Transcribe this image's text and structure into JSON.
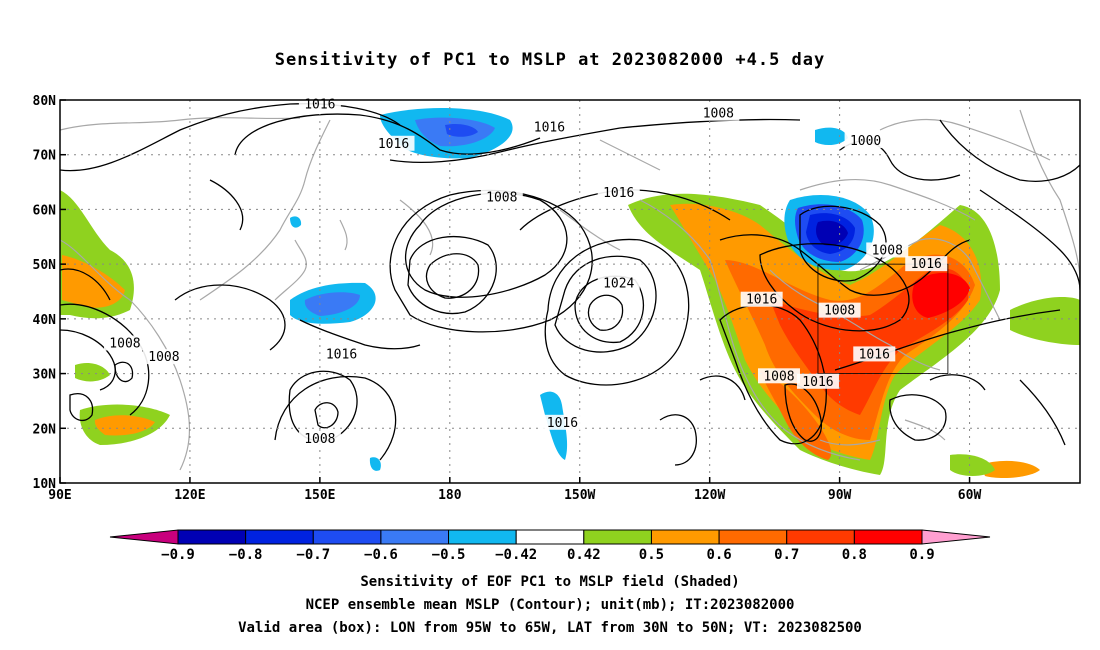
{
  "title": "Sensitivity of PC1 to MSLP at 2023082000 +4.5 day",
  "lat_labels": [
    "80N",
    "70N",
    "60N",
    "50N",
    "40N",
    "30N",
    "20N",
    "10N"
  ],
  "lat_values": [
    80,
    70,
    60,
    50,
    40,
    30,
    20,
    10
  ],
  "lon_labels": [
    "90E",
    "120E",
    "150E",
    "180",
    "150W",
    "120W",
    "90W",
    "60W"
  ],
  "lon_values": [
    90,
    120,
    150,
    180,
    210,
    240,
    270,
    300
  ],
  "contour_labels": [
    {
      "text": "1016",
      "lon": 150,
      "lat": 79.2
    },
    {
      "text": "1008",
      "lon": 242,
      "lat": 77.5
    },
    {
      "text": "1016",
      "lon": 203,
      "lat": 75.0
    },
    {
      "text": "1016",
      "lon": 167,
      "lat": 72.0
    },
    {
      "text": "1000",
      "lon": 276,
      "lat": 72.5
    },
    {
      "text": "1008",
      "lon": 192,
      "lat": 62.2
    },
    {
      "text": "1016",
      "lon": 219,
      "lat": 63.0
    },
    {
      "text": "1008",
      "lon": 281,
      "lat": 52.5
    },
    {
      "text": "1016",
      "lon": 290,
      "lat": 50.0
    },
    {
      "text": "1024",
      "lon": 219,
      "lat": 46.5
    },
    {
      "text": "1016",
      "lon": 252,
      "lat": 43.5
    },
    {
      "text": "1008",
      "lon": 270,
      "lat": 41.5
    },
    {
      "text": "1008",
      "lon": 105,
      "lat": 35.5
    },
    {
      "text": "1008",
      "lon": 114,
      "lat": 33.0
    },
    {
      "text": "1016",
      "lon": 155,
      "lat": 33.5
    },
    {
      "text": "1016",
      "lon": 278,
      "lat": 33.5
    },
    {
      "text": "1008",
      "lon": 256,
      "lat": 29.5
    },
    {
      "text": "1016",
      "lon": 265,
      "lat": 28.5
    },
    {
      "text": "1016",
      "lon": 206,
      "lat": 21.0
    },
    {
      "text": "1008",
      "lon": 150,
      "lat": 18.0
    }
  ],
  "validation_box": {
    "lon_west": 265,
    "lon_east": 295,
    "lat_south": 30,
    "lat_north": 50
  },
  "colorbar": {
    "colors": [
      "#c8007d",
      "#0000b4",
      "#0022e0",
      "#1e4cf2",
      "#3a7af5",
      "#11b8f0",
      "#ffffff",
      "#8fd21f",
      "#ff9a00",
      "#ff6a00",
      "#ff3a00",
      "#ff0000",
      "#ff9fd0"
    ],
    "labels": [
      "−0.9",
      "−0.8",
      "−0.7",
      "−0.6",
      "−0.5",
      "−0.42",
      "0.42",
      "0.5",
      "0.6",
      "0.7",
      "0.8",
      "0.9"
    ]
  },
  "footer": {
    "line1": "Sensitivity of EOF PC1 to MSLP field (Shaded)",
    "line2": "NCEP ensemble mean MSLP (Contour); unit(mb); IT:2023082000",
    "line3": "Valid area (box): LON from 95W to 65W, LAT from 30N to 50N; VT: 2023082500"
  }
}
